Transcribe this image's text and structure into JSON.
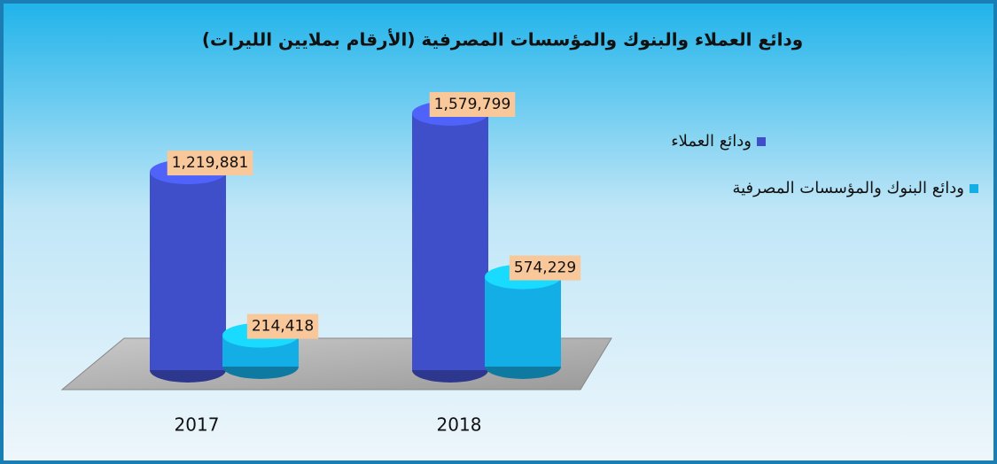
{
  "chart_data": {
    "type": "bar3d",
    "title": "ودائع العملاء والبنوك والمؤسسات المصرفية (الأرقام بملايين الليرات)",
    "categories": [
      "2017",
      "2018"
    ],
    "series": [
      {
        "name": "ودائع العملاء",
        "color": "#3f4fc9",
        "values": [
          1219881,
          1579799
        ],
        "value_labels": [
          "1,219,881",
          "1,579,799"
        ]
      },
      {
        "name": "ودائع البنوك والمؤسسات المصرفية",
        "color": "#14aee6",
        "values": [
          214418,
          574229
        ],
        "value_labels": [
          "214,418",
          "574,229"
        ]
      }
    ],
    "legend": "right"
  }
}
